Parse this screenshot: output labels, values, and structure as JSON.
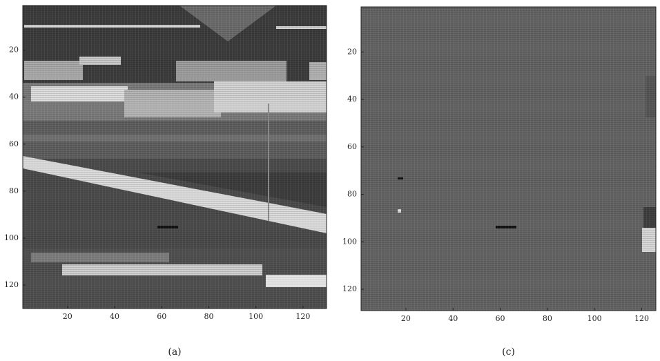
{
  "chart_data": [
    {
      "type": "image",
      "caption": "(a)",
      "xlim": [
        1,
        130
      ],
      "ylim": [
        1,
        130
      ],
      "xticks": [
        20,
        40,
        60,
        80,
        100,
        120
      ],
      "yticks": [
        20,
        40,
        60,
        80,
        100,
        120
      ]
    },
    {
      "type": "image",
      "caption": "(c)",
      "xlim": [
        1,
        126
      ],
      "ylim": [
        1,
        129
      ],
      "xticks": [
        20,
        40,
        60,
        80,
        100,
        120
      ],
      "yticks": [
        20,
        40,
        60,
        80,
        100,
        120
      ]
    }
  ]
}
